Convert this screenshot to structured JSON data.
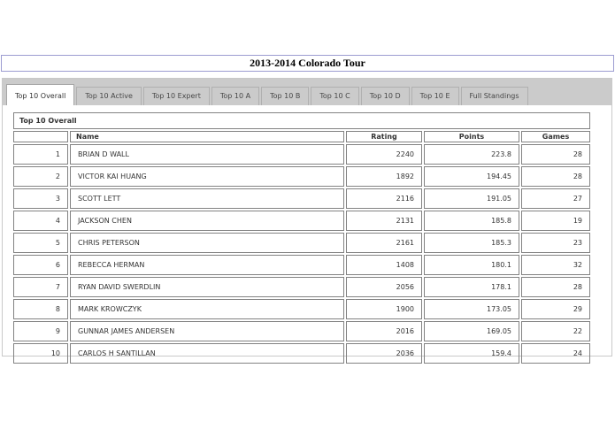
{
  "page": {
    "title": "2013-2014 Colorado Tour"
  },
  "colors": {
    "title_border": "#9c9cd1",
    "tab_strip_bg": "#cbcbcb",
    "active_tab_bg": "#ffffff",
    "panel_border": "#c9c9c9",
    "table_border": "#828282"
  },
  "tabs": [
    {
      "label": "Top 10 Overall",
      "active": true
    },
    {
      "label": "Top 10 Active",
      "active": false
    },
    {
      "label": "Top 10 Expert",
      "active": false
    },
    {
      "label": "Top 10 A",
      "active": false
    },
    {
      "label": "Top 10 B",
      "active": false
    },
    {
      "label": "Top 10 C",
      "active": false
    },
    {
      "label": "Top 10 D",
      "active": false
    },
    {
      "label": "Top 10 E",
      "active": false
    },
    {
      "label": "Full Standings",
      "active": false
    }
  ],
  "table": {
    "caption": "Top 10 Overall",
    "columns": {
      "rank": "",
      "name": "Name",
      "rating": "Rating",
      "points": "Points",
      "games": "Games"
    },
    "rows": [
      {
        "rank": "1",
        "name": "BRIAN D WALL",
        "rating": "2240",
        "points": "223.8",
        "games": "28"
      },
      {
        "rank": "2",
        "name": "VICTOR KAI HUANG",
        "rating": "1892",
        "points": "194.45",
        "games": "28"
      },
      {
        "rank": "3",
        "name": "SCOTT LETT",
        "rating": "2116",
        "points": "191.05",
        "games": "27"
      },
      {
        "rank": "4",
        "name": "JACKSON CHEN",
        "rating": "2131",
        "points": "185.8",
        "games": "19"
      },
      {
        "rank": "5",
        "name": "CHRIS PETERSON",
        "rating": "2161",
        "points": "185.3",
        "games": "23"
      },
      {
        "rank": "6",
        "name": "REBECCA HERMAN",
        "rating": "1408",
        "points": "180.1",
        "games": "32"
      },
      {
        "rank": "7",
        "name": "RYAN DAVID SWERDLIN",
        "rating": "2056",
        "points": "178.1",
        "games": "28"
      },
      {
        "rank": "8",
        "name": "MARK KROWCZYK",
        "rating": "1900",
        "points": "173.05",
        "games": "29"
      },
      {
        "rank": "9",
        "name": "GUNNAR JAMES ANDERSEN",
        "rating": "2016",
        "points": "169.05",
        "games": "22"
      },
      {
        "rank": "10",
        "name": "CARLOS H SANTILLAN",
        "rating": "2036",
        "points": "159.4",
        "games": "24"
      }
    ]
  }
}
